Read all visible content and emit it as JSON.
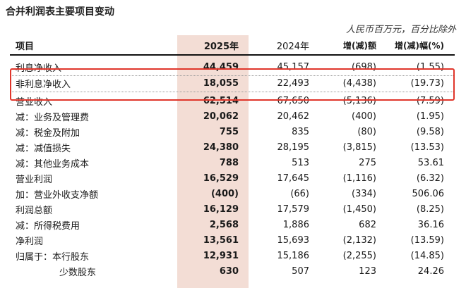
{
  "title": "合并利润表主要项目变动",
  "unit_note": "人民币百万元，百分比除外",
  "columns": [
    "项目",
    "2025年",
    "2024年",
    "增(减)额",
    "增(减)幅(%)"
  ],
  "rows": [
    {
      "label": "利息净收入",
      "y2025": "44,459",
      "y2024": "45,157",
      "change": "(698)",
      "pct": "(1.55)"
    },
    {
      "label": "非利息净收入",
      "y2025": "18,055",
      "y2024": "22,493",
      "change": "(4,438)",
      "pct": "(19.73)"
    },
    {
      "label": "营业收入",
      "y2025": "62,514",
      "y2024": "67,650",
      "change": "(5,136)",
      "pct": "(7.59)"
    },
    {
      "label": "减：业务及管理费",
      "y2025": "20,062",
      "y2024": "20,462",
      "change": "(400)",
      "pct": "(1.95)"
    },
    {
      "label": "减：税金及附加",
      "y2025": "755",
      "y2024": "835",
      "change": "(80)",
      "pct": "(9.58)"
    },
    {
      "label": "减：减值损失",
      "y2025": "24,380",
      "y2024": "28,195",
      "change": "(3,815)",
      "pct": "(13.53)"
    },
    {
      "label": "减：其他业务成本",
      "y2025": "788",
      "y2024": "513",
      "change": "275",
      "pct": "53.61"
    },
    {
      "label": "营业利润",
      "y2025": "16,529",
      "y2024": "17,645",
      "change": "(1,116)",
      "pct": "(6.32)"
    },
    {
      "label": "加：营业外收支净额",
      "y2025": "(400)",
      "y2024": "(66)",
      "change": "(334)",
      "pct": "506.06"
    },
    {
      "label": "利润总额",
      "y2025": "16,129",
      "y2024": "17,579",
      "change": "(1,450)",
      "pct": "(8.25)"
    },
    {
      "label": "减：所得税费用",
      "y2025": "2,568",
      "y2024": "1,886",
      "change": "682",
      "pct": "36.16"
    },
    {
      "label": "净利润",
      "y2025": "13,561",
      "y2024": "15,693",
      "change": "(2,132)",
      "pct": "(13.59)"
    },
    {
      "label": "归属于：本行股东",
      "y2025": "12,931",
      "y2024": "15,186",
      "change": "(2,255)",
      "pct": "(14.85)"
    },
    {
      "label": "少数股东",
      "y2025": "630",
      "y2024": "507",
      "change": "123",
      "pct": "24.26"
    }
  ],
  "highlight_color": "#f3ddd5",
  "box_color": "#e0362b"
}
